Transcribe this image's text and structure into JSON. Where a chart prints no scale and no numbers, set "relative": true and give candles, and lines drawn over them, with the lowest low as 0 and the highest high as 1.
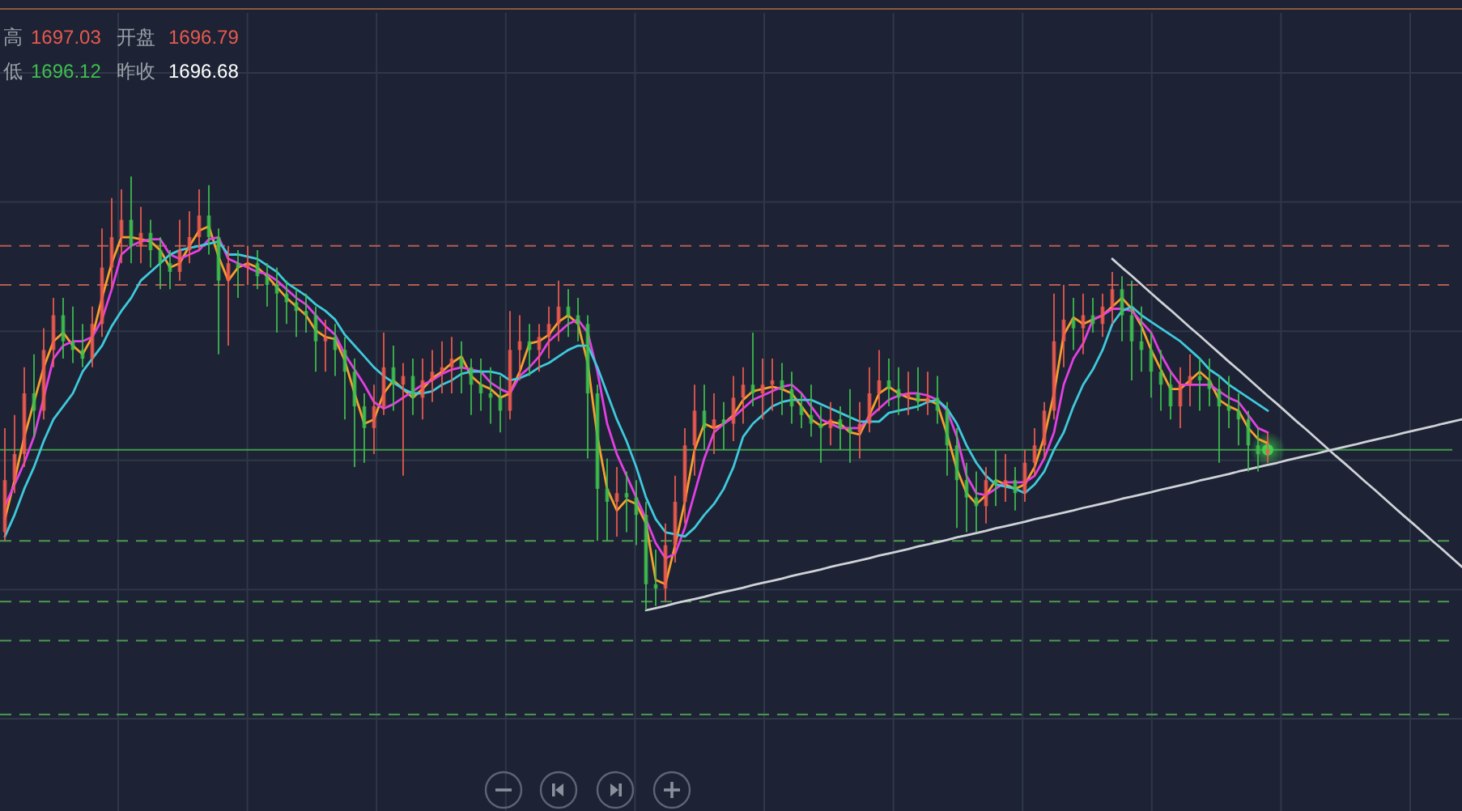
{
  "chart_data": {
    "type": "candlestick",
    "relative": true,
    "grid": true,
    "annotations": [
      "高",
      "1697.03",
      "开盘",
      "1696.79",
      "低",
      "1696.12",
      "昨收",
      "1696.68"
    ],
    "categories": [
      null,
      null,
      null,
      null,
      null,
      null,
      null,
      null,
      null,
      null,
      null,
      null,
      null,
      null,
      null,
      null,
      null,
      null,
      null,
      null,
      null,
      null,
      null,
      null,
      null,
      null,
      null,
      null,
      null,
      null,
      null,
      null,
      null,
      null,
      null,
      null,
      null,
      null,
      null,
      null,
      null,
      null,
      null,
      null,
      null,
      null,
      null,
      null,
      null,
      null,
      null,
      null,
      null,
      null,
      null,
      null,
      null,
      null,
      null,
      null,
      null,
      null,
      null,
      null,
      null,
      null,
      null,
      null,
      null,
      null,
      null,
      null,
      null,
      null,
      null,
      null,
      null,
      null,
      null,
      null,
      null,
      null,
      null,
      null,
      null,
      null,
      null,
      null,
      null,
      null,
      null,
      null,
      null,
      null,
      null,
      null,
      null,
      null,
      null,
      null,
      null,
      null,
      null,
      null,
      null,
      null,
      null,
      null,
      null,
      null,
      null,
      null,
      null,
      null,
      null,
      null,
      null,
      null,
      null,
      null,
      null,
      null,
      null,
      null,
      null,
      null,
      null,
      null,
      null,
      null,
      null,
      null,
      null,
      null,
      null,
      null,
      null,
      null,
      null,
      null,
      null,
      null,
      null,
      null,
      null,
      null,
      null,
      null,
      null,
      null,
      null
    ],
    "ohlc": [
      [
        0.18,
        0.42,
        0.16,
        0.3
      ],
      [
        0.3,
        0.45,
        0.27,
        0.36
      ],
      [
        0.36,
        0.56,
        0.33,
        0.5
      ],
      [
        0.5,
        0.59,
        0.4,
        0.46
      ],
      [
        0.46,
        0.65,
        0.44,
        0.6
      ],
      [
        0.6,
        0.72,
        0.56,
        0.68
      ],
      [
        0.68,
        0.72,
        0.58,
        0.62
      ],
      [
        0.62,
        0.7,
        0.57,
        0.6
      ],
      [
        0.6,
        0.66,
        0.56,
        0.58
      ],
      [
        0.58,
        0.7,
        0.56,
        0.66
      ],
      [
        0.66,
        0.88,
        0.63,
        0.79
      ],
      [
        0.79,
        0.95,
        0.74,
        0.86
      ],
      [
        0.86,
        0.97,
        0.8,
        0.9
      ],
      [
        0.9,
        1.0,
        0.8,
        0.84
      ],
      [
        0.84,
        0.93,
        0.8,
        0.87
      ],
      [
        0.87,
        0.9,
        0.79,
        0.83
      ],
      [
        0.83,
        0.86,
        0.74,
        0.8
      ],
      [
        0.8,
        0.83,
        0.74,
        0.78
      ],
      [
        0.78,
        0.9,
        0.76,
        0.83
      ],
      [
        0.83,
        0.92,
        0.8,
        0.86
      ],
      [
        0.86,
        0.97,
        0.83,
        0.91
      ],
      [
        0.91,
        0.98,
        0.82,
        0.86
      ],
      [
        0.86,
        0.88,
        0.59,
        0.76
      ],
      [
        0.76,
        0.84,
        0.61,
        0.8
      ],
      [
        0.8,
        0.83,
        0.72,
        0.79
      ],
      [
        0.79,
        0.84,
        0.75,
        0.8
      ],
      [
        0.8,
        0.83,
        0.74,
        0.77
      ],
      [
        0.77,
        0.8,
        0.7,
        0.75
      ],
      [
        0.75,
        0.79,
        0.64,
        0.73
      ],
      [
        0.73,
        0.76,
        0.66,
        0.71
      ],
      [
        0.71,
        0.74,
        0.63,
        0.69
      ],
      [
        0.69,
        0.73,
        0.64,
        0.68
      ],
      [
        0.68,
        0.7,
        0.55,
        0.62
      ],
      [
        0.62,
        0.67,
        0.55,
        0.63
      ],
      [
        0.63,
        0.66,
        0.54,
        0.6
      ],
      [
        0.6,
        0.63,
        0.44,
        0.55
      ],
      [
        0.55,
        0.58,
        0.33,
        0.47
      ],
      [
        0.47,
        0.5,
        0.34,
        0.42
      ],
      [
        0.42,
        0.52,
        0.36,
        0.47
      ],
      [
        0.47,
        0.64,
        0.45,
        0.56
      ],
      [
        0.56,
        0.61,
        0.46,
        0.52
      ],
      [
        0.52,
        0.57,
        0.31,
        0.54
      ],
      [
        0.54,
        0.58,
        0.45,
        0.49
      ],
      [
        0.49,
        0.58,
        0.44,
        0.53
      ],
      [
        0.53,
        0.6,
        0.48,
        0.55
      ],
      [
        0.55,
        0.62,
        0.5,
        0.56
      ],
      [
        0.56,
        0.63,
        0.5,
        0.58
      ],
      [
        0.58,
        0.62,
        0.5,
        0.56
      ],
      [
        0.56,
        0.58,
        0.45,
        0.52
      ],
      [
        0.52,
        0.58,
        0.46,
        0.5
      ],
      [
        0.5,
        0.56,
        0.43,
        0.49
      ],
      [
        0.49,
        0.54,
        0.41,
        0.46
      ],
      [
        0.46,
        0.69,
        0.44,
        0.6
      ],
      [
        0.6,
        0.68,
        0.53,
        0.62
      ],
      [
        0.62,
        0.66,
        0.54,
        0.6
      ],
      [
        0.6,
        0.66,
        0.55,
        0.63
      ],
      [
        0.63,
        0.7,
        0.58,
        0.66
      ],
      [
        0.66,
        0.76,
        0.62,
        0.7
      ],
      [
        0.7,
        0.74,
        0.63,
        0.68
      ],
      [
        0.68,
        0.72,
        0.62,
        0.66
      ],
      [
        0.66,
        0.68,
        0.35,
        0.5
      ],
      [
        0.5,
        0.52,
        0.16,
        0.28
      ],
      [
        0.28,
        0.35,
        0.16,
        0.25
      ],
      [
        0.25,
        0.33,
        0.17,
        0.27
      ],
      [
        0.27,
        0.32,
        0.18,
        0.26
      ],
      [
        0.26,
        0.3,
        0.15,
        0.22
      ],
      [
        0.22,
        0.25,
        0.0,
        0.06
      ],
      [
        0.06,
        0.14,
        0.01,
        0.05
      ],
      [
        0.05,
        0.2,
        0.02,
        0.15
      ],
      [
        0.15,
        0.31,
        0.11,
        0.25
      ],
      [
        0.25,
        0.42,
        0.2,
        0.38
      ],
      [
        0.38,
        0.52,
        0.31,
        0.46
      ],
      [
        0.46,
        0.52,
        0.37,
        0.42
      ],
      [
        0.42,
        0.5,
        0.36,
        0.44
      ],
      [
        0.44,
        0.48,
        0.37,
        0.43
      ],
      [
        0.43,
        0.54,
        0.39,
        0.49
      ],
      [
        0.49,
        0.56,
        0.43,
        0.52
      ],
      [
        0.52,
        0.64,
        0.47,
        0.5
      ],
      [
        0.5,
        0.58,
        0.44,
        0.52
      ],
      [
        0.52,
        0.58,
        0.46,
        0.53
      ],
      [
        0.53,
        0.57,
        0.45,
        0.51
      ],
      [
        0.51,
        0.55,
        0.43,
        0.47
      ],
      [
        0.47,
        0.5,
        0.42,
        0.45
      ],
      [
        0.45,
        0.52,
        0.4,
        0.43
      ],
      [
        0.43,
        0.47,
        0.34,
        0.42
      ],
      [
        0.42,
        0.48,
        0.38,
        0.44
      ],
      [
        0.44,
        0.47,
        0.37,
        0.42
      ],
      [
        0.42,
        0.51,
        0.34,
        0.41
      ],
      [
        0.41,
        0.48,
        0.35,
        0.43
      ],
      [
        0.43,
        0.56,
        0.41,
        0.5
      ],
      [
        0.5,
        0.6,
        0.46,
        0.53
      ],
      [
        0.53,
        0.58,
        0.47,
        0.51
      ],
      [
        0.51,
        0.56,
        0.45,
        0.49
      ],
      [
        0.49,
        0.55,
        0.45,
        0.5
      ],
      [
        0.5,
        0.56,
        0.46,
        0.48
      ],
      [
        0.48,
        0.55,
        0.45,
        0.49
      ],
      [
        0.49,
        0.54,
        0.43,
        0.46
      ],
      [
        0.46,
        0.48,
        0.31,
        0.38
      ],
      [
        0.38,
        0.42,
        0.19,
        0.3
      ],
      [
        0.3,
        0.34,
        0.18,
        0.26
      ],
      [
        0.26,
        0.32,
        0.18,
        0.24
      ],
      [
        0.24,
        0.33,
        0.2,
        0.3
      ],
      [
        0.3,
        0.37,
        0.24,
        0.29
      ],
      [
        0.29,
        0.36,
        0.25,
        0.3
      ],
      [
        0.3,
        0.33,
        0.23,
        0.27
      ],
      [
        0.27,
        0.37,
        0.25,
        0.34
      ],
      [
        0.34,
        0.42,
        0.31,
        0.38
      ],
      [
        0.38,
        0.48,
        0.35,
        0.46
      ],
      [
        0.46,
        0.73,
        0.44,
        0.62
      ],
      [
        0.62,
        0.75,
        0.56,
        0.67
      ],
      [
        0.67,
        0.72,
        0.6,
        0.65
      ],
      [
        0.65,
        0.73,
        0.59,
        0.68
      ],
      [
        0.68,
        0.72,
        0.64,
        0.66
      ],
      [
        0.66,
        0.73,
        0.63,
        0.7
      ],
      [
        0.7,
        0.78,
        0.66,
        0.74
      ],
      [
        0.74,
        0.77,
        0.62,
        0.68
      ],
      [
        0.68,
        0.76,
        0.53,
        0.62
      ],
      [
        0.62,
        0.7,
        0.55,
        0.6
      ],
      [
        0.6,
        0.64,
        0.49,
        0.55
      ],
      [
        0.55,
        0.6,
        0.46,
        0.52
      ],
      [
        0.52,
        0.55,
        0.44,
        0.47
      ],
      [
        0.47,
        0.56,
        0.42,
        0.52
      ],
      [
        0.52,
        0.59,
        0.47,
        0.54
      ],
      [
        0.54,
        0.58,
        0.46,
        0.53
      ],
      [
        0.53,
        0.58,
        0.47,
        0.51
      ],
      [
        0.51,
        0.54,
        0.34,
        0.47
      ],
      [
        0.47,
        0.54,
        0.42,
        0.46
      ],
      [
        0.46,
        0.5,
        0.38,
        0.44
      ],
      [
        0.44,
        0.46,
        0.32,
        0.38
      ],
      [
        0.38,
        0.42,
        0.32,
        0.36
      ],
      [
        0.36,
        0.41,
        0.34,
        0.37
      ],
      null,
      null,
      null,
      null,
      null,
      null,
      null,
      null,
      null,
      null,
      null,
      null,
      null,
      null,
      null,
      null,
      null,
      null,
      null,
      null
    ],
    "colors": [
      "#f05b4f",
      "#f05b4f",
      "#f05b4f",
      "#3ec04f",
      "#f05b4f",
      "#f05b4f",
      "#3ec04f",
      "#3ec04f",
      "#3ec04f",
      "#f05b4f",
      "#f05b4f",
      "#f05b4f",
      "#f05b4f",
      "#3ec04f",
      "#f05b4f",
      "#3ec04f",
      "#3ec04f",
      "#3ec04f",
      "#f05b4f",
      "#f05b4f",
      "#f05b4f",
      "#3ec04f",
      "#3ec04f",
      "#f05b4f",
      "#3ec04f",
      "#f05b4f",
      "#3ec04f",
      "#3ec04f",
      "#3ec04f",
      "#3ec04f",
      "#3ec04f",
      "#3ec04f",
      "#3ec04f",
      "#f05b4f",
      "#3ec04f",
      "#3ec04f",
      "#3ec04f",
      "#3ec04f",
      "#f05b4f",
      "#f05b4f",
      "#3ec04f",
      "#f05b4f",
      "#3ec04f",
      "#f05b4f",
      "#f05b4f",
      "#f05b4f",
      "#f05b4f",
      "#3ec04f",
      "#3ec04f",
      "#3ec04f",
      "#3ec04f",
      "#3ec04f",
      "#f05b4f",
      "#f05b4f",
      "#3ec04f",
      "#f05b4f",
      "#f05b4f",
      "#f05b4f",
      "#3ec04f",
      "#3ec04f",
      "#3ec04f",
      "#3ec04f",
      "#3ec04f",
      "#f05b4f",
      "#3ec04f",
      "#3ec04f",
      "#3ec04f",
      "#3ec04f",
      "#f05b4f",
      "#f05b4f",
      "#f05b4f",
      "#f05b4f",
      "#3ec04f",
      "#f05b4f",
      "#3ec04f",
      "#f05b4f",
      "#f05b4f",
      "#3ec04f",
      "#f05b4f",
      "#f05b4f",
      "#3ec04f",
      "#3ec04f",
      "#3ec04f",
      "#3ec04f",
      "#3ec04f",
      "#f05b4f",
      "#3ec04f",
      "#3ec04f",
      "#f05b4f",
      "#f05b4f",
      "#f05b4f",
      "#3ec04f",
      "#3ec04f",
      "#f05b4f",
      "#3ec04f",
      "#f05b4f",
      "#3ec04f",
      "#3ec04f",
      "#3ec04f",
      "#3ec04f",
      "#3ec04f",
      "#f05b4f",
      "#3ec04f",
      "#f05b4f",
      "#3ec04f",
      "#f05b4f",
      "#f05b4f",
      "#f05b4f",
      "#f05b4f",
      "#f05b4f",
      "#3ec04f",
      "#f05b4f",
      "#3ec04f",
      "#f05b4f",
      "#f05b4f",
      "#3ec04f",
      "#3ec04f",
      "#3ec04f",
      "#3ec04f",
      "#3ec04f",
      "#3ec04f",
      "#f05b4f",
      "#f05b4f",
      "#3ec04f",
      "#3ec04f",
      "#3ec04f",
      "#3ec04f",
      "#3ec04f",
      "#3ec04f",
      "#3ec04f",
      "#f05b4f",
      null,
      null,
      null,
      null,
      null,
      null,
      null,
      null,
      null,
      null,
      null,
      null,
      null,
      null,
      null,
      null,
      null,
      null,
      null,
      null
    ],
    "series": [
      {
        "type": "line",
        "color": "#f7a02c",
        "values": [
          0.21,
          0.3,
          0.4,
          0.48,
          0.56,
          0.62,
          0.64,
          0.61,
          0.59,
          0.63,
          0.72,
          0.8,
          0.86,
          0.86,
          0.855,
          0.85,
          0.83,
          0.79,
          0.8,
          0.84,
          0.875,
          0.885,
          0.815,
          0.76,
          0.79,
          0.8,
          0.79,
          0.77,
          0.745,
          0.72,
          0.7,
          0.68,
          0.645,
          0.63,
          0.625,
          0.575,
          0.5,
          0.43,
          0.44,
          0.5,
          0.53,
          0.51,
          0.49,
          0.51,
          0.535,
          0.55,
          0.57,
          0.585,
          0.54,
          0.52,
          0.51,
          0.49,
          0.5,
          0.55,
          0.615,
          0.62,
          0.635,
          0.665,
          0.68,
          0.66,
          0.57,
          0.4,
          0.28,
          0.23,
          0.255,
          0.245,
          0.2,
          0.07,
          0.06,
          0.15,
          0.25,
          0.37,
          0.43,
          0.42,
          0.43,
          0.45,
          0.485,
          0.505,
          0.51,
          0.515,
          0.51,
          0.5,
          0.47,
          0.44,
          0.425,
          0.435,
          0.43,
          0.41,
          0.405,
          0.45,
          0.5,
          0.515,
          0.5,
          0.49,
          0.485,
          0.485,
          0.475,
          0.405,
          0.325,
          0.27,
          0.245,
          0.265,
          0.3,
          0.29,
          0.28,
          0.29,
          0.33,
          0.4,
          0.5,
          0.635,
          0.675,
          0.66,
          0.67,
          0.68,
          0.7,
          0.72,
          0.695,
          0.655,
          0.6,
          0.555,
          0.51,
          0.51,
          0.53,
          0.55,
          0.53,
          0.485,
          0.47,
          0.46,
          0.42,
          0.395,
          0.385,
          null,
          null,
          null,
          null,
          null,
          null,
          null,
          null,
          null,
          null,
          null,
          null,
          null,
          null,
          null,
          null,
          null,
          null,
          null,
          null
        ]
      },
      {
        "type": "line",
        "color": "#e43fe4",
        "values": [
          0.24,
          0.29,
          0.34,
          0.4,
          0.49,
          0.58,
          0.61,
          0.62,
          0.62,
          0.63,
          0.67,
          0.74,
          0.82,
          0.84,
          0.85,
          0.855,
          0.855,
          0.82,
          0.81,
          0.82,
          0.83,
          0.855,
          0.86,
          0.81,
          0.8,
          0.79,
          0.78,
          0.775,
          0.76,
          0.74,
          0.72,
          0.705,
          0.68,
          0.655,
          0.635,
          0.59,
          0.555,
          0.52,
          0.48,
          0.465,
          0.475,
          0.49,
          0.505,
          0.52,
          0.53,
          0.545,
          0.555,
          0.56,
          0.555,
          0.55,
          0.525,
          0.51,
          0.5,
          0.54,
          0.56,
          0.585,
          0.62,
          0.64,
          0.66,
          0.67,
          0.64,
          0.55,
          0.43,
          0.36,
          0.31,
          0.26,
          0.21,
          0.155,
          0.12,
          0.13,
          0.19,
          0.27,
          0.35,
          0.41,
          0.43,
          0.445,
          0.465,
          0.485,
          0.495,
          0.505,
          0.515,
          0.52,
          0.5,
          0.47,
          0.44,
          0.43,
          0.42,
          0.42,
          0.42,
          0.445,
          0.465,
          0.485,
          0.495,
          0.5,
          0.5,
          0.495,
          0.485,
          0.46,
          0.4,
          0.31,
          0.27,
          0.265,
          0.28,
          0.295,
          0.295,
          0.295,
          0.31,
          0.35,
          0.41,
          0.52,
          0.58,
          0.615,
          0.67,
          0.68,
          0.695,
          0.695,
          0.69,
          0.665,
          0.64,
          0.59,
          0.55,
          0.52,
          0.52,
          0.52,
          0.52,
          0.505,
          0.49,
          0.48,
          0.45,
          0.42,
          0.41,
          null,
          null,
          null,
          null,
          null,
          null,
          null,
          null,
          null,
          null,
          null,
          null,
          null,
          null,
          null,
          null,
          null,
          null,
          null,
          null
        ]
      },
      {
        "type": "line",
        "color": "#3fc9dc",
        "values": [
          0.17,
          0.22,
          0.28,
          0.33,
          0.39,
          0.44,
          0.47,
          0.5,
          0.55,
          0.58,
          0.61,
          0.655,
          0.69,
          0.72,
          0.76,
          0.78,
          0.8,
          0.82,
          0.83,
          0.835,
          0.84,
          0.845,
          0.85,
          0.82,
          0.82,
          0.815,
          0.81,
          0.795,
          0.78,
          0.755,
          0.74,
          0.725,
          0.705,
          0.69,
          0.67,
          0.635,
          0.61,
          0.585,
          0.56,
          0.54,
          0.525,
          0.51,
          0.5,
          0.5,
          0.505,
          0.52,
          0.53,
          0.545,
          0.55,
          0.55,
          0.55,
          0.545,
          0.53,
          0.535,
          0.545,
          0.56,
          0.57,
          0.585,
          0.6,
          0.61,
          0.61,
          0.56,
          0.5,
          0.44,
          0.39,
          0.33,
          0.26,
          0.21,
          0.18,
          0.175,
          0.17,
          0.19,
          0.22,
          0.245,
          0.28,
          0.33,
          0.4,
          0.43,
          0.45,
          0.47,
          0.48,
          0.485,
          0.485,
          0.485,
          0.475,
          0.465,
          0.455,
          0.445,
          0.435,
          0.435,
          0.435,
          0.455,
          0.46,
          0.465,
          0.47,
          0.48,
          0.485,
          0.465,
          0.43,
          0.38,
          0.34,
          0.31,
          0.29,
          0.285,
          0.28,
          0.27,
          0.29,
          0.32,
          0.37,
          0.41,
          0.47,
          0.52,
          0.555,
          0.6,
          0.66,
          0.69,
          0.7,
          0.68,
          0.665,
          0.65,
          0.635,
          0.62,
          0.6,
          0.58,
          0.555,
          0.54,
          0.52,
          0.505,
          0.49,
          0.475,
          0.46,
          null,
          null,
          null,
          null,
          null,
          null,
          null,
          null,
          null,
          null,
          null,
          null,
          null,
          null,
          null,
          null,
          null,
          null,
          null,
          null
        ]
      },
      {
        "type": "line",
        "color": "#cfd2d8",
        "values": [
          null,
          null,
          null,
          null,
          null,
          null,
          null,
          null,
          null,
          null,
          null,
          null,
          null,
          null,
          null,
          null,
          null,
          null,
          null,
          null,
          null,
          null,
          null,
          null,
          null,
          null,
          null,
          null,
          null,
          null,
          null,
          null,
          null,
          null,
          null,
          null,
          null,
          null,
          null,
          null,
          null,
          null,
          null,
          null,
          null,
          null,
          null,
          null,
          null,
          null,
          null,
          null,
          null,
          null,
          null,
          null,
          null,
          null,
          null,
          null,
          null,
          null,
          null,
          null,
          null,
          null,
          0,
          0.005,
          0.01,
          0.016,
          0.021,
          0.026,
          0.031,
          0.037,
          0.042,
          0.047,
          0.052,
          0.058,
          0.063,
          0.068,
          0.073,
          0.079,
          0.084,
          0.089,
          0.094,
          0.1,
          0.105,
          0.11,
          0.115,
          0.12,
          0.126,
          0.131,
          0.136,
          0.141,
          0.147,
          0.152,
          0.157,
          0.162,
          0.168,
          0.173,
          0.178,
          0.183,
          0.189,
          0.194,
          0.199,
          0.204,
          0.21,
          0.215,
          0.22,
          0.225,
          0.23,
          0.236,
          0.241,
          0.246,
          0.251,
          0.257,
          0.262,
          0.267,
          0.272,
          0.278,
          0.283,
          0.288,
          0.293,
          0.299,
          0.304,
          0.309,
          0.314,
          0.32,
          0.325,
          0.33,
          0.335,
          0.34,
          0.346,
          0.351,
          0.356,
          0.361,
          0.367,
          0.372,
          0.377,
          0.382,
          0.388,
          0.393,
          0.398,
          0.403,
          0.409,
          0.414,
          0.419,
          0.424,
          0.43,
          0.435,
          0.44
        ]
      },
      {
        "type": "line",
        "color": "#cfd2d8",
        "values": [
          null,
          null,
          null,
          null,
          null,
          null,
          null,
          null,
          null,
          null,
          null,
          null,
          null,
          null,
          null,
          null,
          null,
          null,
          null,
          null,
          null,
          null,
          null,
          null,
          null,
          null,
          null,
          null,
          null,
          null,
          null,
          null,
          null,
          null,
          null,
          null,
          null,
          null,
          null,
          null,
          null,
          null,
          null,
          null,
          null,
          null,
          null,
          null,
          null,
          null,
          null,
          null,
          null,
          null,
          null,
          null,
          null,
          null,
          null,
          null,
          null,
          null,
          null,
          null,
          null,
          null,
          null,
          null,
          null,
          null,
          null,
          null,
          null,
          null,
          null,
          null,
          null,
          null,
          null,
          null,
          null,
          null,
          null,
          null,
          null,
          null,
          null,
          null,
          null,
          null,
          null,
          null,
          null,
          null,
          null,
          null,
          null,
          null,
          null,
          null,
          null,
          null,
          null,
          null,
          null,
          null,
          null,
          null,
          null,
          null,
          null,
          null,
          null,
          null,
          0.81,
          0.79,
          0.771,
          0.751,
          0.731,
          0.711,
          0.692,
          0.672,
          0.652,
          0.633,
          0.613,
          0.593,
          0.573,
          0.554,
          0.534,
          0.514,
          0.494,
          0.475,
          0.455,
          0.435,
          0.416,
          0.396,
          0.376,
          0.356,
          0.337,
          0.317,
          0.297,
          0.278,
          0.258,
          0.238,
          0.218,
          0.199,
          0.179,
          0.159,
          0.14,
          0.12,
          0.1
        ]
      },
      {
        "type": "scatter",
        "color": "#3fd24f",
        "marker": "circle",
        "values": [
          null,
          null,
          null,
          null,
          null,
          null,
          null,
          null,
          null,
          null,
          null,
          null,
          null,
          null,
          null,
          null,
          null,
          null,
          null,
          null,
          null,
          null,
          null,
          null,
          null,
          null,
          null,
          null,
          null,
          null,
          null,
          null,
          null,
          null,
          null,
          null,
          null,
          null,
          null,
          null,
          null,
          null,
          null,
          null,
          null,
          null,
          null,
          null,
          null,
          null,
          null,
          null,
          null,
          null,
          null,
          null,
          null,
          null,
          null,
          null,
          null,
          null,
          null,
          null,
          null,
          null,
          null,
          null,
          null,
          null,
          null,
          null,
          null,
          null,
          null,
          null,
          null,
          null,
          null,
          null,
          null,
          null,
          null,
          null,
          null,
          null,
          null,
          null,
          null,
          null,
          null,
          null,
          null,
          null,
          null,
          null,
          null,
          null,
          null,
          null,
          null,
          null,
          null,
          null,
          null,
          null,
          null,
          null,
          null,
          null,
          null,
          null,
          null,
          null,
          null,
          null,
          null,
          null,
          null,
          null,
          null,
          null,
          null,
          null,
          null,
          null,
          null,
          null,
          null,
          null,
          0.37,
          null,
          null,
          null,
          null,
          null,
          null,
          null,
          null,
          null,
          null,
          null,
          null,
          null,
          null,
          null,
          null,
          null,
          null,
          null,
          null
        ]
      }
    ],
    "ref_lines": [
      {
        "axis": "y",
        "value": 0.84,
        "color": "#b35c52",
        "line_style": "dashed"
      },
      {
        "axis": "y",
        "value": 0.75,
        "color": "#b35c52",
        "line_style": "dashed"
      },
      {
        "axis": "y",
        "value": 0.37,
        "color": "#3f9a4a",
        "line_style": "solid"
      },
      {
        "axis": "y",
        "value": 0.16,
        "color": "#4c9c50",
        "line_style": "dashed"
      },
      {
        "axis": "y",
        "value": 0.02,
        "color": "#4c9c50",
        "line_style": "dashed"
      },
      {
        "axis": "y",
        "value": -0.07,
        "color": "#4c9c50",
        "line_style": "dashed"
      },
      {
        "axis": "y",
        "value": -0.24,
        "color": "#4c9c50",
        "line_style": "dashed"
      }
    ]
  }
}
